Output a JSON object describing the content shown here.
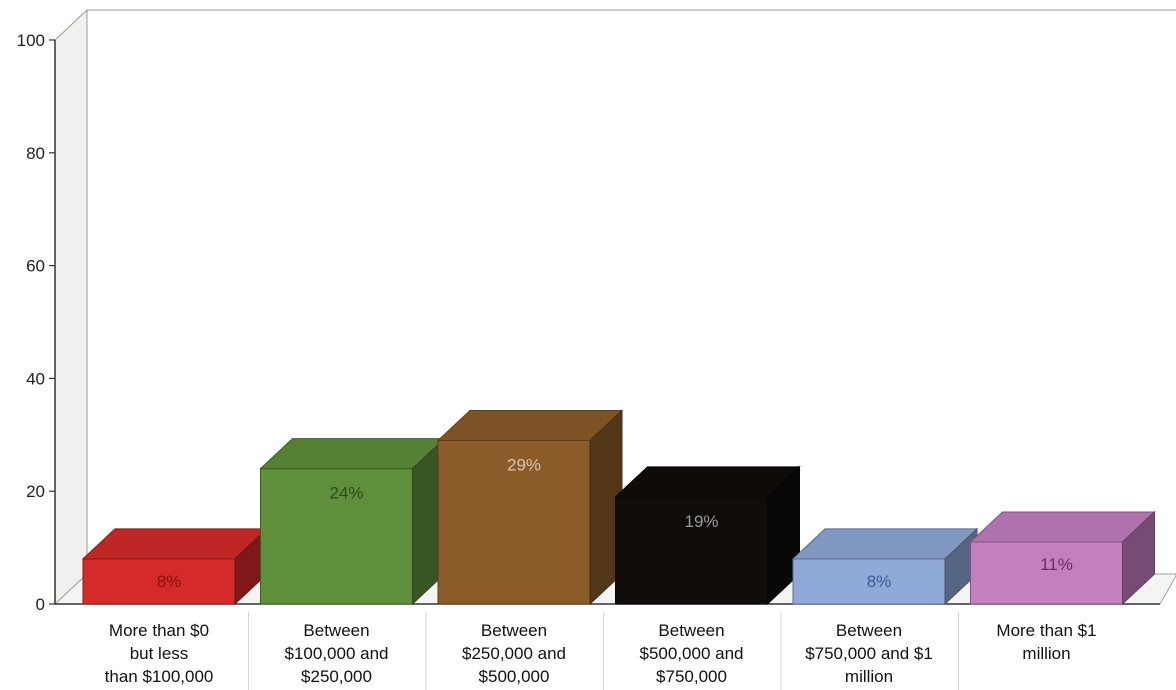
{
  "chart_data": {
    "type": "bar",
    "style": "3d",
    "title": "",
    "xlabel": "",
    "ylabel": "",
    "ylim": [
      0,
      100
    ],
    "yticks": [
      0,
      20,
      40,
      60,
      80,
      100
    ],
    "grid": false,
    "legend": "none",
    "categories": [
      [
        "More than $0",
        "but less",
        "than $100,000"
      ],
      [
        "Between",
        "$100,000 and",
        "$250,000"
      ],
      [
        "Between",
        "$250,000 and",
        "$500,000"
      ],
      [
        "Between",
        "$500,000 and",
        "$750,000"
      ],
      [
        "Between",
        "$750,000 and $1",
        "million"
      ],
      [
        "More than $1",
        "million"
      ]
    ],
    "values": [
      8,
      24,
      29,
      19,
      8,
      11
    ],
    "data_labels": [
      "8%",
      "24%",
      "29%",
      "19%",
      "8%",
      "11%"
    ],
    "colors": [
      "#d42a2a",
      "#5e8f3a",
      "#8b5c2a",
      "#0f0c0a",
      "#8fa9d8",
      "#c47fc1"
    ],
    "label_colors": [
      "#8a1010",
      "#2d4a18",
      "#d9c4a8",
      "#9a9a9a",
      "#3a5a9a",
      "#6a2a6a"
    ]
  }
}
